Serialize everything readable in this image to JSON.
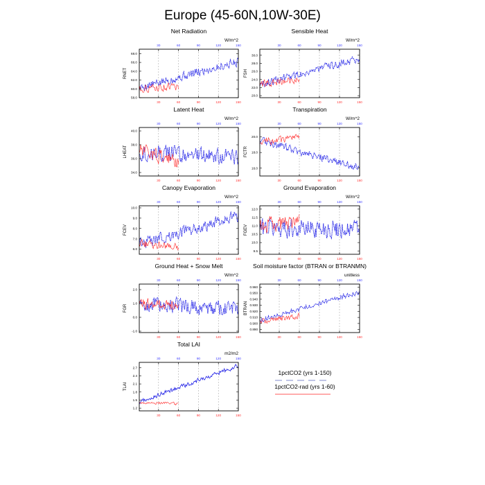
{
  "title": "Europe (45-60N,10W-30E)",
  "colors": {
    "series_a": "#1f1fe6",
    "series_b": "#ff2020",
    "top_ticks": "#3a3aff",
    "bottom_ticks": "#ff3030",
    "grid": "#9a9a9a"
  },
  "legend": [
    {
      "label": "1pctCO2 (yrs 1-150)",
      "color": "#1f1fe6",
      "style": "dashed"
    },
    {
      "label": "1pctCO2-rad (yrs 1-60)",
      "color": "#ff2020",
      "style": "solid"
    }
  ],
  "chart_data": [
    {
      "type": "line",
      "title": "Net Radiation",
      "ylabel": "RNET",
      "units": "W/m^2",
      "xlim": [
        1,
        150
      ],
      "ylim": [
        58,
        69
      ],
      "yticks": [
        58,
        60,
        62,
        64,
        66,
        68
      ],
      "ytick_labels": [
        "58.0",
        "60.0",
        "62.0",
        "64.0",
        "66.0",
        "68.0"
      ],
      "xticks": [
        30,
        60,
        90,
        120,
        150
      ],
      "grid": "dashed vertical at x ticks",
      "series": [
        {
          "x_range": [
            1,
            150
          ],
          "start": 60.2,
          "end": 66.2,
          "noise": 1.2,
          "style": "dashed"
        },
        {
          "x_range": [
            1,
            60
          ],
          "start": 60.0,
          "end": 60.6,
          "noise": 1.1,
          "style": "solid"
        }
      ]
    },
    {
      "type": "line",
      "title": "Sensible Heat",
      "ylabel": "FSH",
      "units": "W/m^2",
      "xlim": [
        1,
        150
      ],
      "ylim": [
        19.5,
        31.5
      ],
      "yticks": [
        20,
        22,
        24,
        26,
        28,
        30
      ],
      "ytick_labels": [
        "20.0",
        "22.0",
        "24.0",
        "26.0",
        "28.0",
        "30.0"
      ],
      "xticks": [
        30,
        60,
        90,
        120,
        150
      ],
      "grid": "dashed vertical at x ticks",
      "series": [
        {
          "x_range": [
            1,
            150
          ],
          "start": 22.8,
          "end": 29.2,
          "noise": 1.2,
          "style": "dashed"
        },
        {
          "x_range": [
            1,
            60
          ],
          "start": 22.8,
          "end": 24.0,
          "noise": 1.1,
          "style": "solid"
        }
      ]
    },
    {
      "type": "line",
      "title": "Latent Heat",
      "ylabel": "LHEAT",
      "units": "W/m^2",
      "xlim": [
        1,
        150
      ],
      "ylim": [
        33.5,
        40.5
      ],
      "yticks": [
        34,
        36,
        38,
        40
      ],
      "ytick_labels": [
        "34.0",
        "36.0",
        "38.0",
        "40.0"
      ],
      "xticks": [
        30,
        60,
        90,
        120,
        150
      ],
      "grid": "dashed vertical at x ticks",
      "series": [
        {
          "x_range": [
            1,
            150
          ],
          "start": 37.0,
          "end": 36.2,
          "noise": 1.4,
          "style": "dashed"
        },
        {
          "x_range": [
            1,
            60
          ],
          "start": 37.2,
          "end": 35.6,
          "noise": 1.3,
          "style": "solid"
        }
      ]
    },
    {
      "type": "line",
      "title": "Transpiration",
      "ylabel": "FCTR",
      "units": "W/m^2",
      "xlim": [
        1,
        150
      ],
      "ylim": [
        15,
        21.2
      ],
      "yticks": [
        16,
        18,
        20
      ],
      "ytick_labels": [
        "16.0",
        "18.0",
        "20.0"
      ],
      "xticks": [
        30,
        60,
        90,
        120,
        150
      ],
      "grid": "dashed vertical at x ticks",
      "series": [
        {
          "x_range": [
            1,
            150
          ],
          "start": 19.6,
          "end": 16.0,
          "noise": 0.6,
          "style": "dashed"
        },
        {
          "x_range": [
            1,
            60
          ],
          "start": 19.4,
          "end": 19.8,
          "noise": 0.6,
          "style": "solid"
        }
      ]
    },
    {
      "type": "line",
      "title": "Canopy Evaporation",
      "ylabel": "FCEV",
      "units": "W/m^2",
      "xlim": [
        1,
        150
      ],
      "ylim": [
        5.5,
        10.2
      ],
      "yticks": [
        6,
        7,
        8,
        9,
        10
      ],
      "ytick_labels": [
        "6.0",
        "7.0",
        "8.0",
        "9.0",
        "10.0"
      ],
      "xticks": [
        30,
        60,
        90,
        120,
        150
      ],
      "grid": "dashed vertical at x ticks",
      "series": [
        {
          "x_range": [
            1,
            150
          ],
          "start": 6.5,
          "end": 9.2,
          "noise": 0.7,
          "style": "dashed"
        },
        {
          "x_range": [
            1,
            60
          ],
          "start": 6.6,
          "end": 6.2,
          "noise": 0.5,
          "style": "solid"
        }
      ]
    },
    {
      "type": "line",
      "title": "Ground Evaporation",
      "ylabel": "FGEV",
      "units": "W/m^2",
      "xlim": [
        1,
        150
      ],
      "ylim": [
        9.3,
        12.2
      ],
      "yticks": [
        9.5,
        10.0,
        10.5,
        11.0,
        11.5,
        12.0
      ],
      "ytick_labels": [
        "9.5",
        "10.0",
        "10.5",
        "11.0",
        "11.5",
        "12.0"
      ],
      "xticks": [
        30,
        60,
        90,
        120,
        150
      ],
      "grid": "dashed vertical at x ticks",
      "series": [
        {
          "x_range": [
            1,
            150
          ],
          "start": 10.9,
          "end": 10.8,
          "noise": 0.7,
          "style": "dashed"
        },
        {
          "x_range": [
            1,
            60
          ],
          "start": 11.0,
          "end": 11.2,
          "noise": 0.6,
          "style": "solid"
        }
      ]
    },
    {
      "type": "line",
      "title": "Ground Heat + Snow Melt",
      "ylabel": "FGR",
      "units": "W/m^2",
      "xlim": [
        1,
        150
      ],
      "ylim": [
        -1.1,
        2.4
      ],
      "yticks": [
        -1,
        0,
        1,
        2
      ],
      "ytick_labels": [
        "-1.0",
        "0.0",
        "1.0",
        "2.0"
      ],
      "xticks": [
        30,
        60,
        90,
        120,
        150
      ],
      "grid": "dashed vertical at x ticks",
      "series": [
        {
          "x_range": [
            1,
            150
          ],
          "start": 1.0,
          "end": 0.6,
          "noise": 0.7,
          "style": "dashed"
        },
        {
          "x_range": [
            1,
            60
          ],
          "start": 1.0,
          "end": 0.9,
          "noise": 0.5,
          "style": "solid"
        }
      ]
    },
    {
      "type": "line",
      "title": "Soil moisture factor (BTRAN or BTRANMN)",
      "ylabel": "BTRAN",
      "units": "unitless",
      "xlim": [
        1,
        150
      ],
      "ylim": [
        0.885,
        0.965
      ],
      "yticks": [
        0.89,
        0.9,
        0.91,
        0.92,
        0.93,
        0.94,
        0.95,
        0.96
      ],
      "ytick_labels": [
        "0.890",
        "0.900",
        "0.910",
        "0.920",
        "0.930",
        "0.940",
        "0.950",
        "0.960"
      ],
      "xticks": [
        30,
        60,
        90,
        120,
        150
      ],
      "grid": "dashed vertical at x ticks",
      "series": [
        {
          "x_range": [
            1,
            150
          ],
          "start": 0.905,
          "end": 0.952,
          "noise": 0.005,
          "style": "dashed"
        },
        {
          "x_range": [
            1,
            60
          ],
          "start": 0.904,
          "end": 0.912,
          "noise": 0.006,
          "style": "solid"
        }
      ]
    },
    {
      "type": "line",
      "title": "Total LAI",
      "ylabel": "TLAI",
      "units": "m2/m2",
      "xlim": [
        1,
        150
      ],
      "ylim": [
        1.1,
        2.9
      ],
      "yticks": [
        1.2,
        1.5,
        1.8,
        2.1,
        2.4,
        2.7
      ],
      "ytick_labels": [
        "1.2",
        "1.5",
        "1.8",
        "2.1",
        "2.4",
        "2.7"
      ],
      "xticks": [
        30,
        60,
        90,
        120,
        150
      ],
      "grid": "dashed vertical at x ticks",
      "series": [
        {
          "x_range": [
            1,
            150
          ],
          "start": 1.42,
          "end": 2.78,
          "noise": 0.1,
          "style": "solid-thin"
        },
        {
          "x_range": [
            1,
            60
          ],
          "start": 1.42,
          "end": 1.36,
          "noise": 0.07,
          "style": "solid"
        }
      ]
    }
  ]
}
